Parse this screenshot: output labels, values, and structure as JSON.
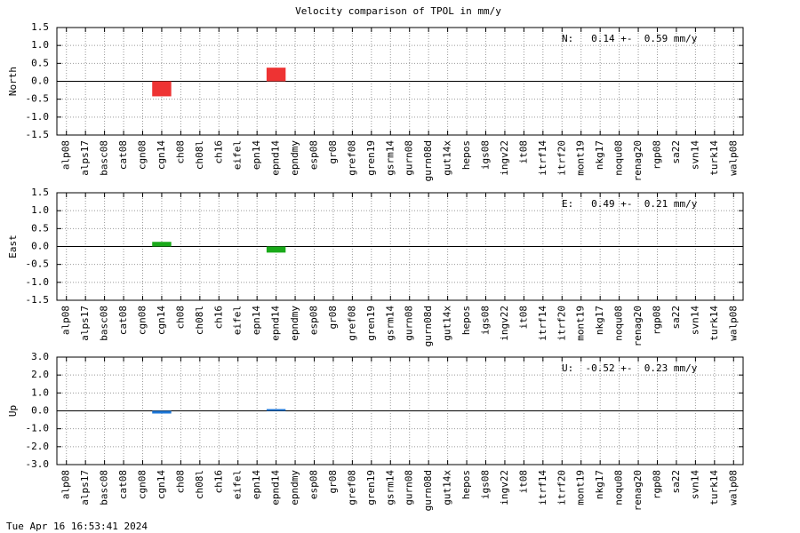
{
  "title": "Velocity comparison of TPOL in mm/y",
  "footer": "Tue Apr 16 16:53:41 2024",
  "chart_data": [
    {
      "type": "bar",
      "ylabel": "North",
      "annotation": "N:   0.14 +-  0.59 mm/y",
      "color": "#ee3333",
      "grid": true,
      "categories": [
        "alp08",
        "alps17",
        "basc08",
        "cat08",
        "cgn08",
        "cgn14",
        "ch08",
        "ch08l",
        "ch16",
        "eifel",
        "epn14",
        "epnd14",
        "epndmy",
        "esp08",
        "gr08",
        "gref08",
        "gren19",
        "gsrm14",
        "gurn08",
        "gurn08d",
        "gut14x",
        "hepos",
        "igs08",
        "ingv22",
        "it08",
        "itrf14",
        "itrf20",
        "mont19",
        "nkg17",
        "noqu08",
        "renag20",
        "rgp08",
        "sa22",
        "svn14",
        "turk14",
        "walp08"
      ],
      "values": [
        null,
        null,
        null,
        null,
        null,
        -0.42,
        null,
        null,
        null,
        null,
        null,
        0.38,
        null,
        null,
        null,
        null,
        null,
        null,
        null,
        null,
        null,
        null,
        null,
        null,
        null,
        null,
        null,
        null,
        null,
        null,
        null,
        null,
        null,
        null,
        null,
        null
      ],
      "ylim": [
        -1.5,
        1.5
      ],
      "yticks": [
        -1.5,
        {
          "value": -1,
          "label": "-1.0"
        },
        -0.5,
        {
          "value": 0,
          "label": "0.0"
        },
        0.5,
        {
          "value": 1,
          "label": "1.0"
        },
        1.5
      ]
    },
    {
      "type": "bar",
      "ylabel": "East",
      "annotation": "E:   0.49 +-  0.21 mm/y",
      "color": "#1aaa1a",
      "grid": true,
      "categories": [
        "alp08",
        "alps17",
        "basc08",
        "cat08",
        "cgn08",
        "cgn14",
        "ch08",
        "ch08l",
        "ch16",
        "eifel",
        "epn14",
        "epnd14",
        "epndmy",
        "esp08",
        "gr08",
        "gref08",
        "gren19",
        "gsrm14",
        "gurn08",
        "gurn08d",
        "gut14x",
        "hepos",
        "igs08",
        "ingv22",
        "it08",
        "itrf14",
        "itrf20",
        "mont19",
        "nkg17",
        "noqu08",
        "renag20",
        "rgp08",
        "sa22",
        "svn14",
        "turk14",
        "walp08"
      ],
      "values": [
        null,
        null,
        null,
        null,
        null,
        0.13,
        null,
        null,
        null,
        null,
        null,
        -0.17,
        null,
        null,
        null,
        null,
        null,
        null,
        null,
        null,
        null,
        null,
        null,
        null,
        null,
        null,
        null,
        null,
        null,
        null,
        null,
        null,
        null,
        null,
        null,
        null
      ],
      "ylim": [
        -1.5,
        1.5
      ],
      "yticks": [
        -1.5,
        {
          "value": -1,
          "label": "-1.0"
        },
        -0.5,
        {
          "value": 0,
          "label": "0.0"
        },
        0.5,
        {
          "value": 1,
          "label": "1.0"
        },
        1.5
      ]
    },
    {
      "type": "bar",
      "ylabel": "Up",
      "annotation": "U:  -0.52 +-  0.23 mm/y",
      "color": "#1f78d8",
      "grid": true,
      "categories": [
        "alp08",
        "alps17",
        "basc08",
        "cat08",
        "cgn08",
        "cgn14",
        "ch08",
        "ch08l",
        "ch16",
        "eifel",
        "epn14",
        "epnd14",
        "epndmy",
        "esp08",
        "gr08",
        "gref08",
        "gren19",
        "gsrm14",
        "gurn08",
        "gurn08d",
        "gut14x",
        "hepos",
        "igs08",
        "ingv22",
        "it08",
        "itrf14",
        "itrf20",
        "mont19",
        "nkg17",
        "noqu08",
        "renag20",
        "rgp08",
        "sa22",
        "svn14",
        "turk14",
        "walp08"
      ],
      "values": [
        null,
        null,
        null,
        null,
        null,
        -0.15,
        null,
        null,
        null,
        null,
        null,
        0.1,
        null,
        null,
        null,
        null,
        null,
        null,
        null,
        null,
        null,
        null,
        null,
        null,
        null,
        null,
        null,
        null,
        null,
        null,
        null,
        null,
        null,
        null,
        null,
        null
      ],
      "ylim": [
        -3,
        3
      ],
      "yticks": [
        {
          "value": -3,
          "label": "-3.0"
        },
        {
          "value": -2,
          "label": "-2.0"
        },
        {
          "value": -1,
          "label": "-1.0"
        },
        {
          "value": 0,
          "label": "0.0"
        },
        {
          "value": 1,
          "label": "1.0"
        },
        {
          "value": 2,
          "label": "2.0"
        },
        {
          "value": 3,
          "label": "3.0"
        }
      ]
    }
  ]
}
